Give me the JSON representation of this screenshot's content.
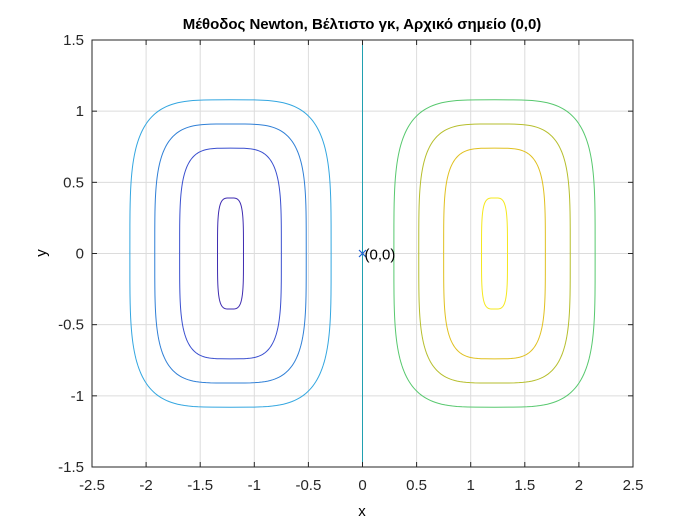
{
  "chart_data": {
    "type": "contour",
    "title": "Μέθοδος Newton, Βέλτιστο γκ, Αρχικό σημείο (0,0)",
    "xlabel": "x",
    "ylabel": "y",
    "xlim": [
      -2.5,
      2.5
    ],
    "ylim": [
      -1.5,
      1.5
    ],
    "xticks": [
      -2.5,
      -2,
      -1.5,
      -1,
      -0.5,
      0,
      0.5,
      1,
      1.5,
      2,
      2.5
    ],
    "xtick_labels": [
      "-2.5",
      "-2",
      "-1.5",
      "-1",
      "-0.5",
      "0",
      "0.5",
      "1",
      "1.5",
      "2",
      "2.5"
    ],
    "yticks": [
      -1.5,
      -1,
      -0.5,
      0,
      0.5,
      1,
      1.5
    ],
    "ytick_labels": [
      "-1.5",
      "-1",
      "-0.5",
      "0",
      "0.5",
      "1",
      "1.5"
    ],
    "grid": true,
    "contours": [
      {
        "center": [
          -1.22,
          0
        ],
        "a": 0.93,
        "b": 1.08,
        "color": "#33a6e0"
      },
      {
        "center": [
          -1.22,
          0
        ],
        "a": 0.7,
        "b": 0.91,
        "color": "#2f7fd6"
      },
      {
        "center": [
          -1.22,
          0
        ],
        "a": 0.47,
        "b": 0.74,
        "color": "#3a4fcf"
      },
      {
        "center": [
          -1.22,
          0
        ],
        "a": 0.12,
        "b": 0.39,
        "color": "#3e2bb0"
      },
      {
        "center": [
          1.22,
          0
        ],
        "a": 0.93,
        "b": 1.08,
        "color": "#57c86e"
      },
      {
        "center": [
          1.22,
          0
        ],
        "a": 0.7,
        "b": 0.91,
        "color": "#b6be2c"
      },
      {
        "center": [
          1.22,
          0
        ],
        "a": 0.47,
        "b": 0.74,
        "color": "#e0c020"
      },
      {
        "center": [
          1.22,
          0
        ],
        "a": 0.12,
        "b": 0.39,
        "color": "#f5e81c"
      }
    ],
    "center_line": {
      "x": 0,
      "color": "#20a0b0"
    },
    "points": [
      {
        "x": 0,
        "y": 0,
        "label": "(0,0)",
        "marker": "x",
        "color": "#2060d0"
      }
    ]
  }
}
